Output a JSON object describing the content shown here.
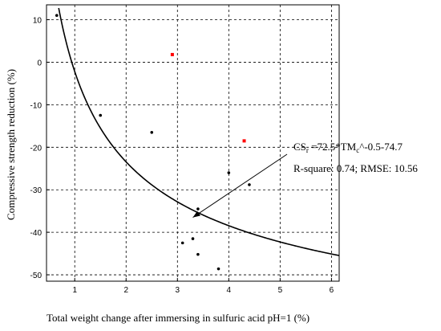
{
  "chart_data": {
    "type": "scatter",
    "title": "",
    "xlabel": "Total weight change after immersing in sulfuric acid pH=1 (%)",
    "ylabel": "Compressive strength reduction (%)",
    "xlim": [
      0.45,
      6.15
    ],
    "ylim": [
      -51.5,
      13.5
    ],
    "xticks": [
      1,
      2,
      3,
      4,
      5,
      6
    ],
    "yticks": [
      10,
      0,
      -10,
      -20,
      -30,
      -40,
      -50
    ],
    "xtick_labels": [
      "1",
      "2",
      "3",
      "4",
      "5",
      "6"
    ],
    "ytick_labels": [
      "10",
      "0",
      "-10",
      "-20",
      "-30",
      "-40",
      "-50"
    ],
    "grid": true,
    "points": [
      {
        "x": 0.65,
        "y": 11.0
      },
      {
        "x": 1.5,
        "y": -12.5
      },
      {
        "x": 2.5,
        "y": -16.5
      },
      {
        "x": 3.1,
        "y": -42.5
      },
      {
        "x": 3.3,
        "y": -41.5
      },
      {
        "x": 3.4,
        "y": -34.5
      },
      {
        "x": 3.4,
        "y": -45.2
      },
      {
        "x": 3.8,
        "y": -48.6
      },
      {
        "x": 4.0,
        "y": -26.0
      },
      {
        "x": 4.4,
        "y": -28.8
      }
    ],
    "outliers": [
      {
        "x": 2.9,
        "y": 1.8
      },
      {
        "x": 4.3,
        "y": -18.5
      }
    ],
    "fit": {
      "a": 72.5,
      "b": -0.5,
      "c": -74.7
    },
    "annotation": {
      "line1_prefix": "CS",
      "line1_sub": "r",
      "line1_mid": " =72.5*TM",
      "line1_sub2": "c",
      "line1_suffix": "^-0.5-74.7",
      "line2": "R-square: 0.74; RMSE: 10.56",
      "arrow_target": {
        "x": 3.3,
        "y": -36.5
      }
    },
    "colors": {
      "points": "#000000",
      "outliers": "#ff0000",
      "fit": "#000000",
      "grid": "#000000"
    }
  }
}
